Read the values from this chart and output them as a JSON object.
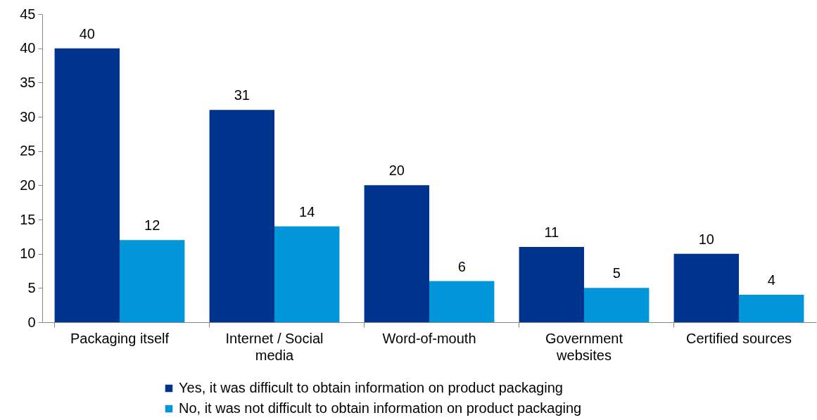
{
  "chart_data": {
    "type": "bar",
    "categories": [
      "Packaging itself",
      "Internet / Social media",
      "Word-of-mouth",
      "Government websites",
      "Certified sources"
    ],
    "series": [
      {
        "name": "Yes, it was difficult to obtain information on product packaging",
        "color": "#00338d",
        "values": [
          40,
          31,
          20,
          11,
          10
        ]
      },
      {
        "name": "No, it was not difficult to obtain information on product packaging",
        "color": "#0096d9",
        "values": [
          12,
          14,
          6,
          5,
          4
        ]
      }
    ],
    "ylim": [
      0,
      45
    ],
    "yticks": [
      0,
      5,
      10,
      15,
      20,
      25,
      30,
      35,
      40,
      45
    ],
    "grid": false,
    "legend": "bottom",
    "data_labels": true
  }
}
